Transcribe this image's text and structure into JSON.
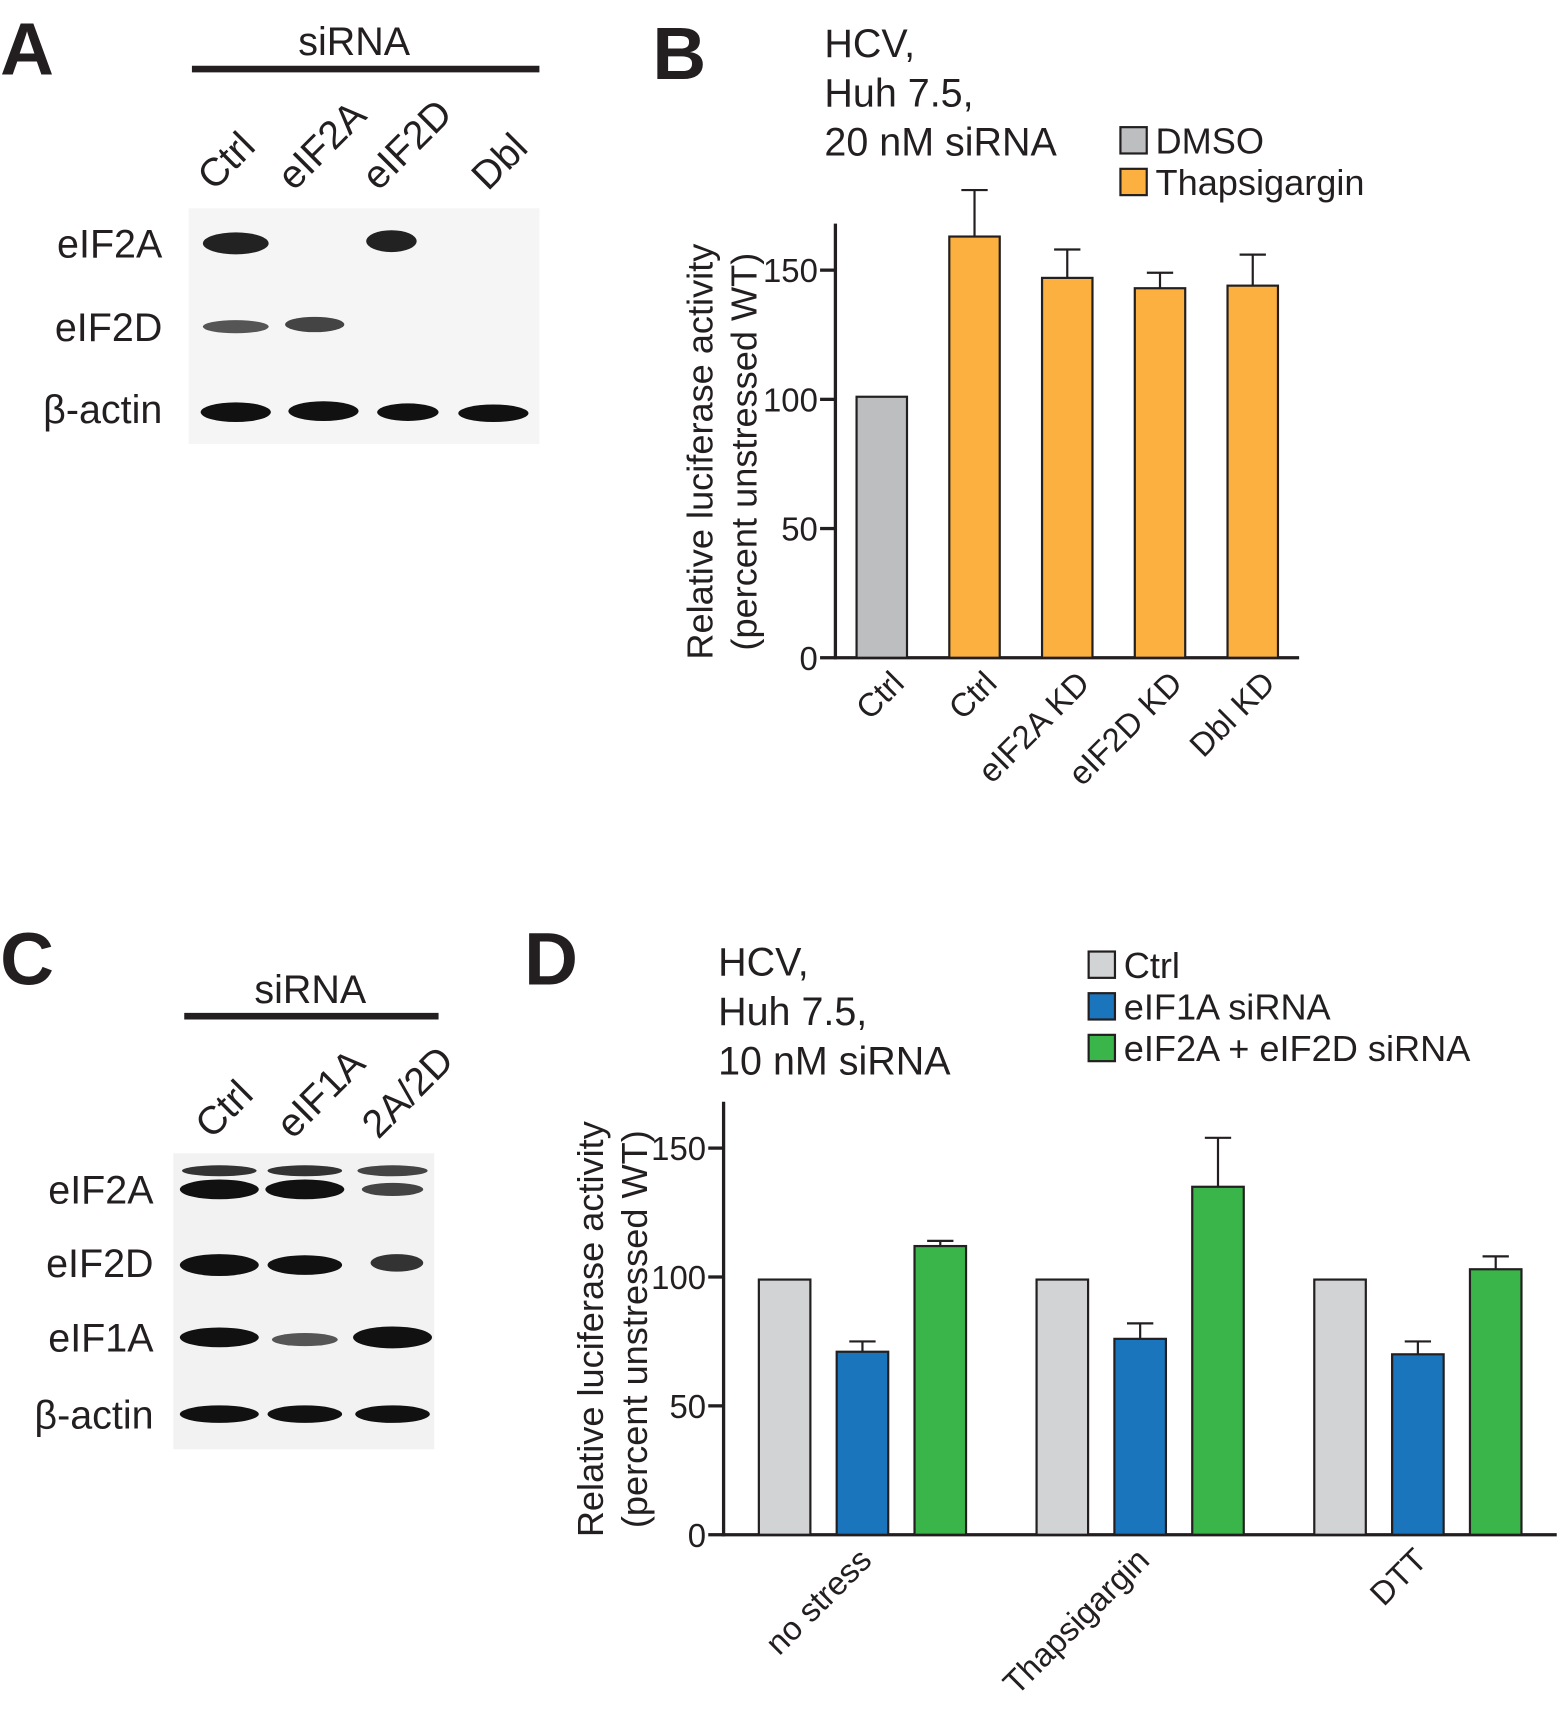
{
  "panels": {
    "a": "A",
    "b": "B",
    "c": "C",
    "d": "D"
  },
  "blot_a": {
    "header": "siRNA",
    "lanes": [
      "Ctrl",
      "eIF2A",
      "eIF2D",
      "Dbl"
    ],
    "rows": [
      "eIF2A",
      "eIF2D",
      "β-actin"
    ]
  },
  "blot_c": {
    "header": "siRNA",
    "lanes": [
      "Ctrl",
      "eIF1A",
      "2A/2D"
    ],
    "rows": [
      "eIF2A",
      "eIF2D",
      "eIF1A",
      "β-actin"
    ]
  },
  "chart_data": [
    {
      "type": "bar",
      "annotation": [
        "HCV,",
        "Huh 7.5,",
        "20 nM siRNA"
      ],
      "y_label": [
        "Relative luciferase activity",
        "(percent unstressed WT)"
      ],
      "categories": [
        "Ctrl",
        "Ctrl",
        "eIF2A KD",
        "eIF2D KD",
        "Dbl KD"
      ],
      "series": [
        {
          "name": "DMSO",
          "color": "#bcbec0",
          "values": [
            101,
            null,
            null,
            null,
            null
          ]
        },
        {
          "name": "Thapsigargin",
          "color": "#fbb040",
          "values": [
            null,
            163,
            147,
            143,
            144
          ],
          "errors": [
            null,
            18,
            11,
            6,
            12
          ]
        }
      ],
      "ylim": [
        0,
        168
      ],
      "yticks": [
        0,
        50,
        100,
        150
      ]
    },
    {
      "type": "bar",
      "annotation": [
        "HCV,",
        "Huh 7.5,",
        "10 nM siRNA"
      ],
      "y_label": [
        "Relative luciferase activity",
        "(percent unstressed WT)"
      ],
      "categories": [
        "no stress",
        "Thapsigargin",
        "DTT"
      ],
      "series": [
        {
          "name": "Ctrl",
          "color": "#d1d3d4",
          "values": [
            99,
            99,
            99
          ]
        },
        {
          "name": "eIF1A siRNA",
          "color": "#1b75bc",
          "values": [
            71,
            76,
            70
          ],
          "errors": [
            4,
            6,
            5
          ]
        },
        {
          "name": "eIF2A + eIF2D siRNA",
          "color": "#39b54a",
          "values": [
            112,
            135,
            103
          ],
          "errors": [
            2,
            19,
            5
          ]
        }
      ],
      "ylim": [
        0,
        168
      ],
      "yticks": [
        0,
        50,
        100,
        150
      ]
    }
  ]
}
